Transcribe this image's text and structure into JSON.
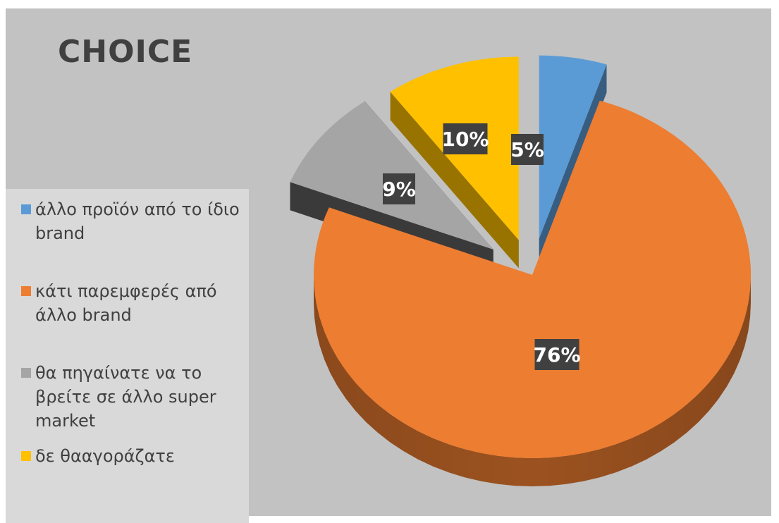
{
  "chart_data": {
    "type": "pie",
    "title": "CHOICE",
    "categories": [
      "άλλο προϊόν από το ίδιο brand",
      "κάτι παρεμφερές από άλλο brand",
      "θα πηγαίνατε να το βρείτε σε άλλο super market",
      "δε θααγοράζατε"
    ],
    "values": [
      5,
      76,
      9,
      10
    ],
    "data_labels": [
      "5%",
      "76%",
      "9%",
      "10%"
    ],
    "colors": [
      "#5b9bd5",
      "#ed7d31",
      "#a5a5a5",
      "#ffc000"
    ],
    "legend_position": "left",
    "exploded": true,
    "three_d": true
  }
}
